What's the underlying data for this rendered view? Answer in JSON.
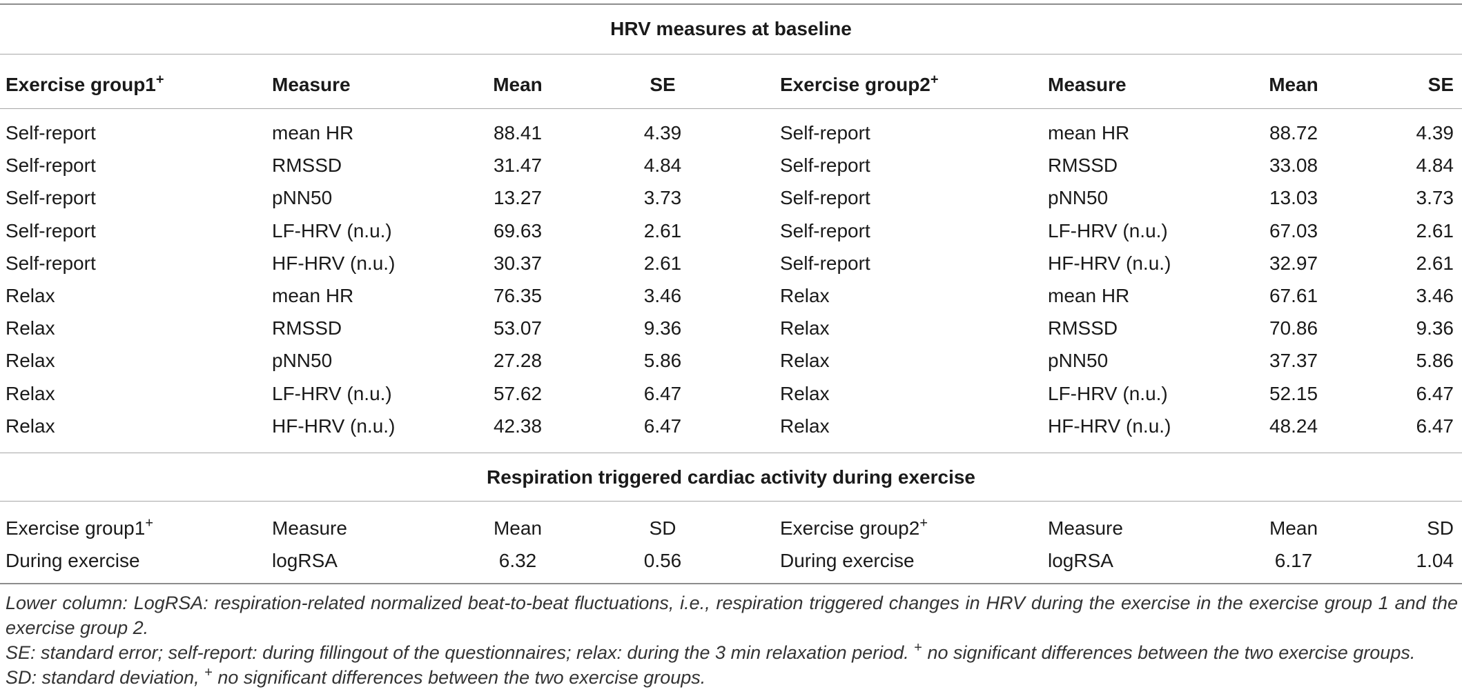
{
  "baseline": {
    "title": "HRV measures at baseline",
    "headers": [
      "Exercise group1",
      "Measure",
      "Mean",
      "SE",
      "Exercise group2",
      "Measure",
      "Mean",
      "SE"
    ],
    "sup_marker": "+",
    "rows": [
      [
        "Self-report",
        "mean HR",
        "88.41",
        "4.39",
        "Self-report",
        "mean HR",
        "88.72",
        "4.39"
      ],
      [
        "Self-report",
        "RMSSD",
        "31.47",
        "4.84",
        "Self-report",
        "RMSSD",
        "33.08",
        "4.84"
      ],
      [
        "Self-report",
        "pNN50",
        "13.27",
        "3.73",
        "Self-report",
        "pNN50",
        "13.03",
        "3.73"
      ],
      [
        "Self-report",
        "LF-HRV (n.u.)",
        "69.63",
        "2.61",
        "Self-report",
        "LF-HRV (n.u.)",
        "67.03",
        "2.61"
      ],
      [
        "Self-report",
        "HF-HRV (n.u.)",
        "30.37",
        "2.61",
        "Self-report",
        "HF-HRV (n.u.)",
        "32.97",
        "2.61"
      ],
      [
        "Relax",
        "mean HR",
        "76.35",
        "3.46",
        "Relax",
        "mean HR",
        "67.61",
        "3.46"
      ],
      [
        "Relax",
        "RMSSD",
        "53.07",
        "9.36",
        "Relax",
        "RMSSD",
        "70.86",
        "9.36"
      ],
      [
        "Relax",
        "pNN50",
        "27.28",
        "5.86",
        "Relax",
        "pNN50",
        "37.37",
        "5.86"
      ],
      [
        "Relax",
        "LF-HRV (n.u.)",
        "57.62",
        "6.47",
        "Relax",
        "LF-HRV (n.u.)",
        "52.15",
        "6.47"
      ],
      [
        "Relax",
        "HF-HRV (n.u.)",
        "42.38",
        "6.47",
        "Relax",
        "HF-HRV (n.u.)",
        "48.24",
        "6.47"
      ]
    ]
  },
  "exercise": {
    "title": "Respiration triggered cardiac activity during exercise",
    "headers": [
      "Exercise group1",
      "Measure",
      "Mean",
      "SD",
      "Exercise group2",
      "Measure",
      "Mean",
      "SD"
    ],
    "sup_marker": "+",
    "rows": [
      [
        "During exercise",
        "logRSA",
        "6.32",
        "0.56",
        "During exercise",
        "logRSA",
        "6.17",
        "1.04"
      ]
    ]
  },
  "notes": {
    "line1": "Lower column: LogRSA: respiration-related normalized beat-to-beat fluctuations, i.e., respiration triggered changes in HRV during the exercise in the exercise group 1 and the exercise group 2.",
    "line2_a": "SE: standard error; self-report: during fillingout of the questionnaires; relax: during the 3 min relaxation period.",
    "line2_sup": "+",
    "line2_b": "no significant differences between the two exercise groups.",
    "line3_a": "SD: standard deviation,",
    "line3_sup": "+",
    "line3_b": "no significant differences between the two exercise groups."
  }
}
